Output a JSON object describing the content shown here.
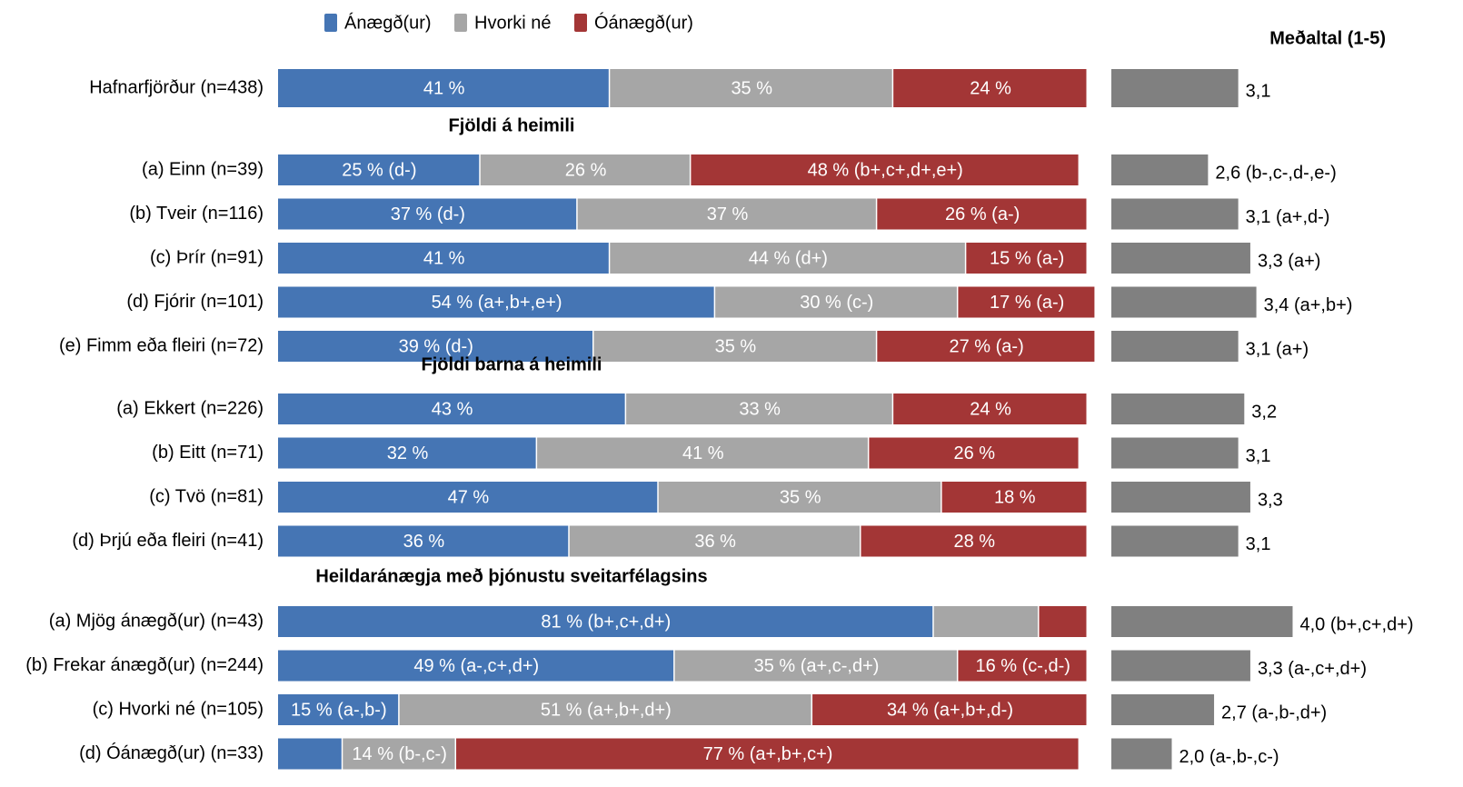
{
  "chart_data": {
    "type": "stacked_bar",
    "series": [
      {
        "name": "Ánægð(ur)",
        "color": "#4575b4"
      },
      {
        "name": "Hvorki né",
        "color": "#a6a6a6"
      },
      {
        "name": "Óánægð(ur)",
        "color": "#a33636"
      }
    ],
    "xlim": [
      0,
      100
    ],
    "mean_title": "Meðaltal (1-5)",
    "mean_color": "#808080",
    "mean_xlim": [
      1,
      5
    ],
    "groups": [
      {
        "categories": [
          "Hafnarfjörður (n=438)"
        ],
        "values": [
          [
            41,
            35,
            24
          ]
        ],
        "value_labels": [
          [
            "41 %",
            "35 %",
            "24 %"
          ]
        ],
        "means": [
          3.1
        ],
        "mean_labels": [
          "3,1"
        ]
      },
      {
        "title": "Fjöldi á heimili",
        "categories": [
          "(a) Einn (n=39)",
          "(b) Tveir (n=116)",
          "(c) Þrír (n=91)",
          "(d) Fjórir (n=101)",
          "(e) Fimm eða fleiri (n=72)"
        ],
        "values": [
          [
            25,
            26,
            48
          ],
          [
            37,
            37,
            26
          ],
          [
            41,
            44,
            15
          ],
          [
            54,
            30,
            17
          ],
          [
            39,
            35,
            27
          ]
        ],
        "value_labels": [
          [
            "25 % (d-)",
            "26 %",
            "48 % (b+,c+,d+,e+)"
          ],
          [
            "37 % (d-)",
            "37 %",
            "26 % (a-)"
          ],
          [
            "41 %",
            "44 % (d+)",
            "15 % (a-)"
          ],
          [
            "54 % (a+,b+,e+)",
            "30 % (c-)",
            "17 % (a-)"
          ],
          [
            "39 % (d-)",
            "35 %",
            "27 % (a-)"
          ]
        ],
        "means": [
          2.6,
          3.1,
          3.3,
          3.4,
          3.1
        ],
        "mean_labels": [
          "2,6 (b-,c-,d-,e-)",
          "3,1 (a+,d-)",
          "3,3 (a+)",
          "3,4 (a+,b+)",
          "3,1 (a+)"
        ]
      },
      {
        "title": "Fjöldi barna á heimili",
        "categories": [
          "(a) Ekkert (n=226)",
          "(b) Eitt (n=71)",
          "(c) Tvö (n=81)",
          "(d) Þrjú eða fleiri (n=41)"
        ],
        "values": [
          [
            43,
            33,
            24
          ],
          [
            32,
            41,
            26
          ],
          [
            47,
            35,
            18
          ],
          [
            36,
            36,
            28
          ]
        ],
        "value_labels": [
          [
            "43 %",
            "33 %",
            "24 %"
          ],
          [
            "32 %",
            "41 %",
            "26 %"
          ],
          [
            "47 %",
            "35 %",
            "18 %"
          ],
          [
            "36 %",
            "36 %",
            "28 %"
          ]
        ],
        "means": [
          3.2,
          3.1,
          3.3,
          3.1
        ],
        "mean_labels": [
          "3,2",
          "3,1",
          "3,3",
          "3,1"
        ]
      },
      {
        "title": "Heildaránægja með þjónustu sveitarfélagsins",
        "categories": [
          "(a) Mjög ánægð(ur) (n=43)",
          "(b) Frekar ánægð(ur) (n=244)",
          "(c) Hvorki né (n=105)",
          "(d) Óánægð(ur) (n=33)"
        ],
        "values": [
          [
            81,
            13,
            6
          ],
          [
            49,
            35,
            16
          ],
          [
            15,
            51,
            34
          ],
          [
            8,
            14,
            77
          ]
        ],
        "value_labels": [
          [
            "81 % (b+,c+,d+)",
            null,
            null
          ],
          [
            "49 % (a-,c+,d+)",
            "35 % (a+,c-,d+)",
            "16 % (c-,d-)"
          ],
          [
            "15 % (a-,b-)",
            "51 % (a+,b+,d+)",
            "34 % (a+,b+,d-)"
          ],
          [
            null,
            "14 % (b-,c-)",
            "77 % (a+,b+,c+)"
          ]
        ],
        "means": [
          4.0,
          3.3,
          2.7,
          2.0
        ],
        "mean_labels": [
          "4,0 (b+,c+,d+)",
          "3,3 (a-,c+,d+)",
          "2,7 (a-,b-,d+)",
          "2,0 (a-,b-,c-)"
        ]
      }
    ]
  }
}
